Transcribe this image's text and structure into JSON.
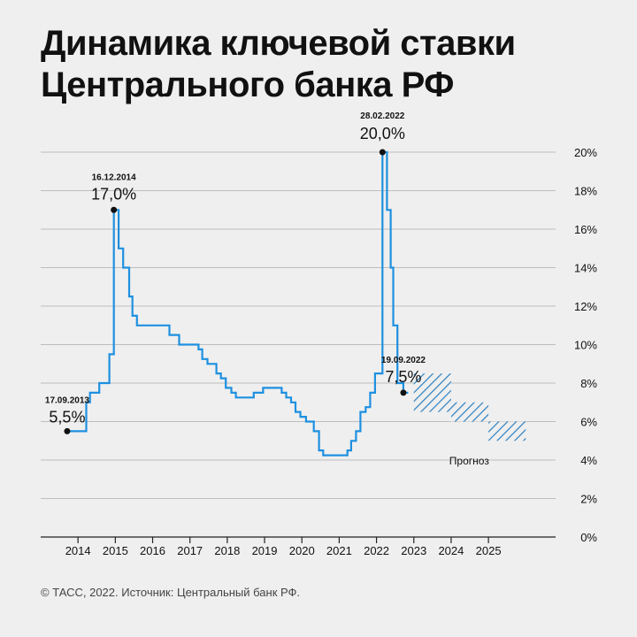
{
  "header": {
    "title_line1": "Динамика ключевой ставки",
    "title_line2": "Центрального банка РФ"
  },
  "footer": {
    "source": "© ТАСС, 2022. Источник: Центральный банк РФ."
  },
  "colors": {
    "line": "#1e90e0",
    "forecast": "#2a7fc0",
    "grid": "#bdbdbd",
    "text": "#111111"
  },
  "chart_data": {
    "type": "line",
    "title": "Динамика ключевой ставки Центрального банка РФ",
    "x_axis": {
      "ticks": [
        "2014",
        "2015",
        "2016",
        "2017",
        "2018",
        "2019",
        "2020",
        "2021",
        "2022",
        "2023",
        "2024",
        "2025"
      ],
      "range": [
        2013.3,
        2026.2
      ]
    },
    "y_axis": {
      "ticks": [
        "0%",
        "2%",
        "4%",
        "6%",
        "8%",
        "10%",
        "12%",
        "14%",
        "16%",
        "18%",
        "20%"
      ],
      "range": [
        0,
        20
      ],
      "position": "right"
    },
    "grid": true,
    "series": [
      {
        "step": true,
        "points": [
          [
            2013.71,
            5.5
          ],
          [
            2014.22,
            7.0
          ],
          [
            2014.32,
            7.5
          ],
          [
            2014.57,
            8.0
          ],
          [
            2014.84,
            9.5
          ],
          [
            2014.96,
            17.0
          ],
          [
            2015.09,
            15.0
          ],
          [
            2015.21,
            14.0
          ],
          [
            2015.37,
            12.5
          ],
          [
            2015.46,
            11.5
          ],
          [
            2015.58,
            11.0
          ],
          [
            2016.45,
            10.5
          ],
          [
            2016.71,
            10.0
          ],
          [
            2017.23,
            9.75
          ],
          [
            2017.33,
            9.25
          ],
          [
            2017.47,
            9.0
          ],
          [
            2017.71,
            8.5
          ],
          [
            2017.83,
            8.25
          ],
          [
            2017.96,
            7.75
          ],
          [
            2018.11,
            7.5
          ],
          [
            2018.23,
            7.25
          ],
          [
            2018.71,
            7.5
          ],
          [
            2018.96,
            7.75
          ],
          [
            2019.46,
            7.5
          ],
          [
            2019.58,
            7.25
          ],
          [
            2019.71,
            7.0
          ],
          [
            2019.83,
            6.5
          ],
          [
            2019.96,
            6.25
          ],
          [
            2020.11,
            6.0
          ],
          [
            2020.32,
            5.5
          ],
          [
            2020.46,
            4.5
          ],
          [
            2020.57,
            4.25
          ],
          [
            2021.22,
            4.5
          ],
          [
            2021.32,
            5.0
          ],
          [
            2021.45,
            5.5
          ],
          [
            2021.57,
            6.5
          ],
          [
            2021.71,
            6.75
          ],
          [
            2021.83,
            7.5
          ],
          [
            2021.96,
            8.5
          ],
          [
            2022.16,
            9.5
          ],
          [
            2022.16,
            20.0
          ],
          [
            2022.28,
            17.0
          ],
          [
            2022.38,
            14.0
          ],
          [
            2022.45,
            11.0
          ],
          [
            2022.56,
            9.5
          ],
          [
            2022.56,
            8.0
          ],
          [
            2022.72,
            7.5
          ],
          [
            2022.85,
            7.5
          ]
        ]
      }
    ],
    "forecast": [
      {
        "x": [
          2023.0,
          2024.0
        ],
        "y": [
          6.5,
          8.5
        ]
      },
      {
        "x": [
          2024.0,
          2025.0
        ],
        "y": [
          6.0,
          7.0
        ]
      },
      {
        "x": [
          2025.0,
          2026.0
        ],
        "y": [
          5.0,
          6.0
        ]
      }
    ],
    "annotations": [
      {
        "date": "17.09.2013",
        "value": "5,5%",
        "x": 2013.71,
        "y": 5.5
      },
      {
        "date": "16.12.2014",
        "value": "17,0%",
        "x": 2014.96,
        "y": 17.0
      },
      {
        "date": "28.02.2022",
        "value": "20,0%",
        "x": 2022.16,
        "y": 20.0
      },
      {
        "date": "19.09.2022",
        "value": "7,5%",
        "x": 2022.72,
        "y": 7.5
      }
    ],
    "forecast_label": "Прогноз"
  }
}
